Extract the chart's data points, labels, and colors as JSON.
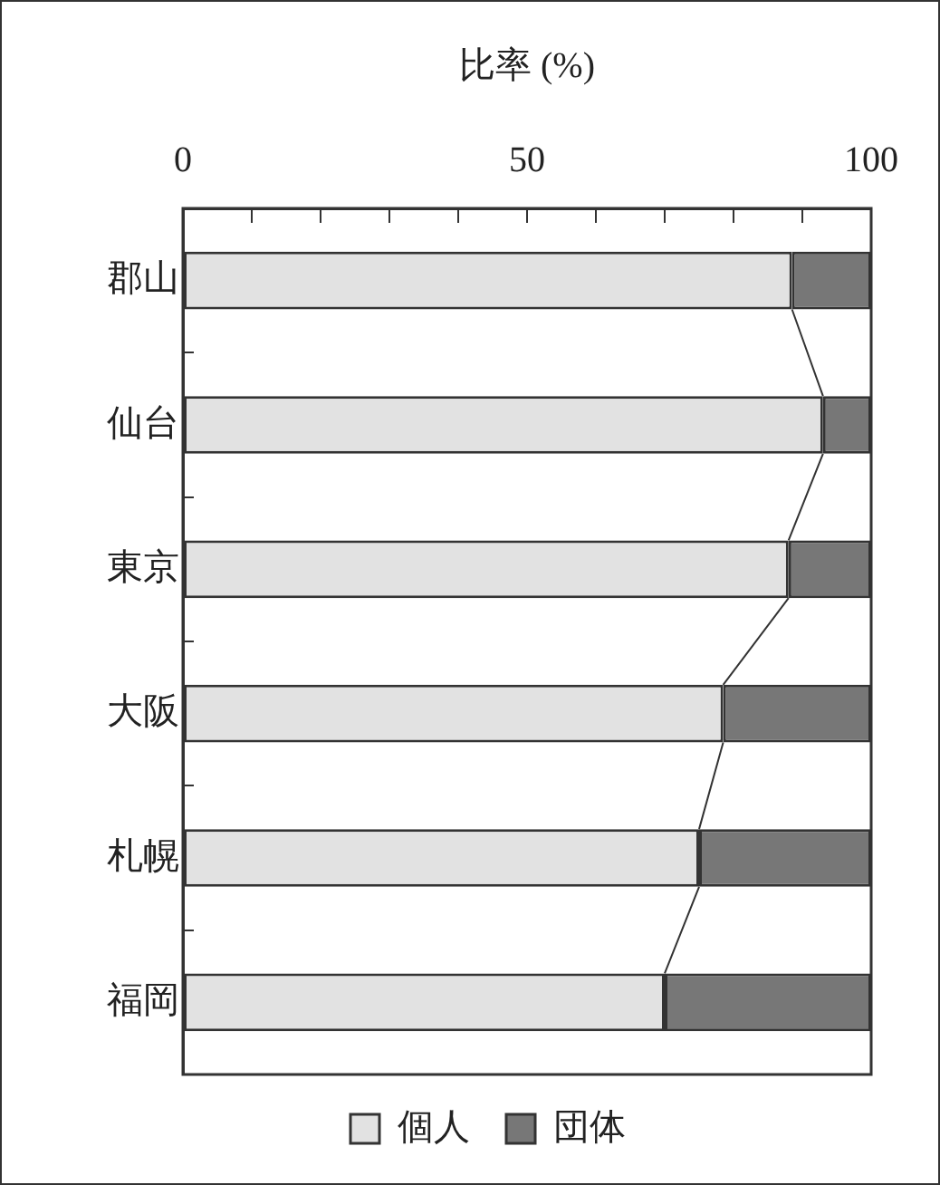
{
  "chart_data": {
    "type": "bar",
    "orientation": "horizontal",
    "stacked": true,
    "xlabel": "比率 (%)",
    "categories": [
      "郡山",
      "仙台",
      "東京",
      "大阪",
      "札幌",
      "福岡"
    ],
    "series": [
      {
        "name": "個人",
        "color": "#e2e2e2",
        "values": [
          88.5,
          93,
          88,
          78.5,
          75,
          70
        ]
      },
      {
        "name": "団体",
        "color": "#777777",
        "values": [
          11.5,
          7,
          12,
          21.5,
          25,
          30
        ]
      }
    ],
    "xlim": [
      0,
      100
    ],
    "xticks": [
      0,
      {
        "value": 10,
        "label": null
      },
      {
        "value": 20,
        "label": null
      },
      {
        "value": 30,
        "label": null
      },
      {
        "value": 40,
        "label": null
      },
      50,
      {
        "value": 60,
        "label": null
      },
      {
        "value": 70,
        "label": null
      },
      {
        "value": 80,
        "label": null
      },
      {
        "value": 90,
        "label": null
      },
      100
    ],
    "grid": false,
    "legend": "bottom"
  }
}
